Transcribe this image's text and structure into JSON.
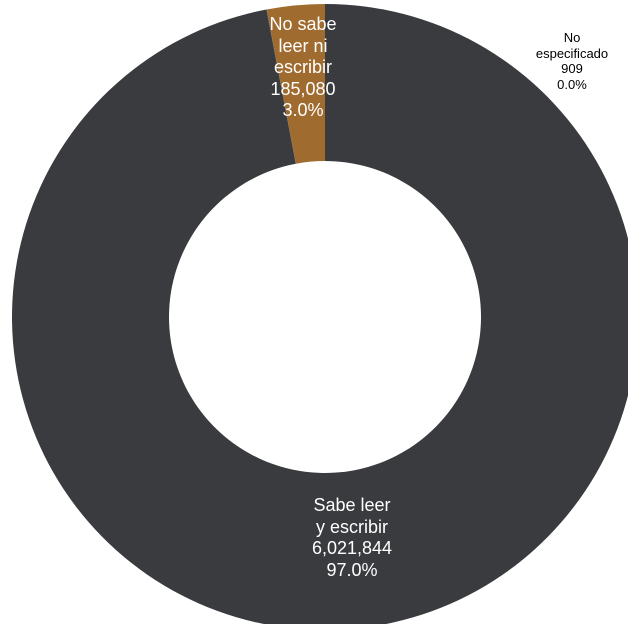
{
  "chart_data": {
    "type": "pie",
    "variant": "donut",
    "title": "",
    "slices": [
      {
        "key": "sabe",
        "label_lines": [
          "Sabe leer",
          "y escribir"
        ],
        "value": 6021844,
        "value_text": "6,021,844",
        "percent_text": "97.0%",
        "color": "#393b3e"
      },
      {
        "key": "noesp",
        "label_lines": [
          "No",
          "especificado"
        ],
        "value": 909,
        "value_text": "909",
        "percent_text": "0.0%",
        "color": "#393b3e"
      },
      {
        "key": "nosabe",
        "label_lines": [
          "No sabe",
          "leer ni",
          "escribir"
        ],
        "value": 185080,
        "value_text": "185,080",
        "percent_text": "3.0%",
        "color": "#a06b2e"
      }
    ],
    "legend": "none"
  }
}
